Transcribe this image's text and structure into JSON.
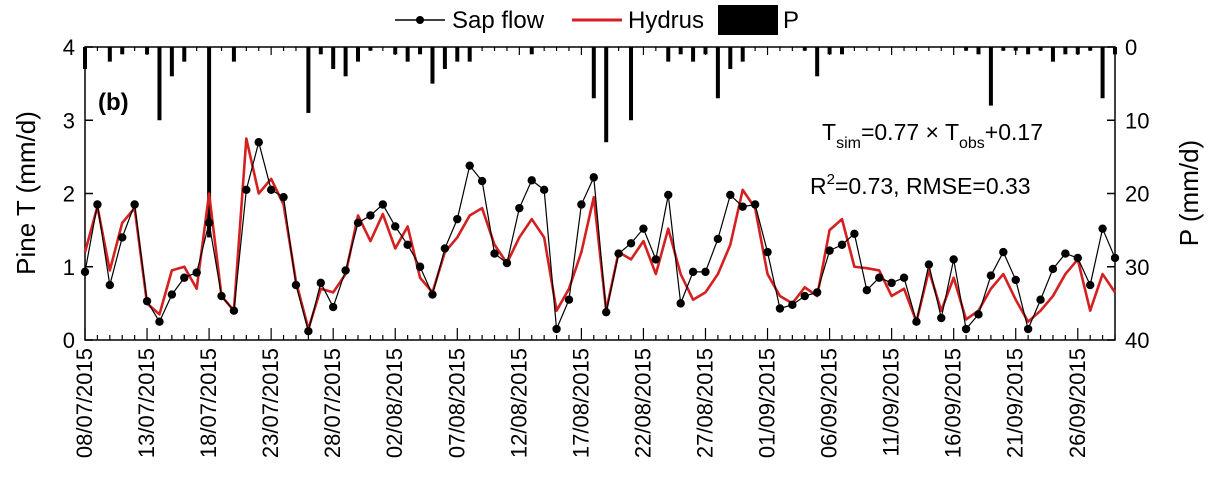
{
  "chart_data": {
    "type": "line",
    "panel_label": "(b)",
    "ylabel_left": "Pine T (mm/d)",
    "ylabel_right": "P (mm/d)",
    "ylim_left": [
      0,
      4
    ],
    "ylim_right_inverted": [
      0,
      40
    ],
    "yticks_left": [
      "0",
      "1",
      "2",
      "3",
      "4"
    ],
    "yticks_right": [
      "0",
      "10",
      "20",
      "30",
      "40"
    ],
    "x_tick_labels": [
      "08/07/2015",
      "13/07/2015",
      "18/07/2015",
      "23/07/2015",
      "28/07/2015",
      "02/08/2015",
      "07/08/2015",
      "12/08/2015",
      "17/08/2015",
      "22/08/2015",
      "27/08/2015",
      "01/09/2015",
      "06/09/2015",
      "11/09/2015",
      "16/09/2015",
      "21/09/2015",
      "26/09/2015"
    ],
    "x_start_date": "08/07/2015",
    "legend": {
      "sap": "Sap flow",
      "hydrus": "Hydrus",
      "precip": "P",
      "placement": "top"
    },
    "annotation": {
      "line1": {
        "t": "T",
        "sim": "sim",
        "mid": "=0.77 × T",
        "obs": "obs",
        "end": "+0.17"
      },
      "line2": {
        "r": "R",
        "sup": "2",
        "rest": "=0.73, RMSE=0.33"
      }
    },
    "colors": {
      "sap": "#000000",
      "hydrus": "#d42020",
      "precip": "#000000"
    },
    "series": [
      {
        "name": "Sap flow",
        "values": [
          0.93,
          1.85,
          0.75,
          1.4,
          1.85,
          0.53,
          0.25,
          0.62,
          0.85,
          0.92,
          1.6,
          0.6,
          0.4,
          2.05,
          2.7,
          2.05,
          1.95,
          0.75,
          0.12,
          0.78,
          0.45,
          0.95,
          1.6,
          1.7,
          1.85,
          1.55,
          1.3,
          1.0,
          0.62,
          1.25,
          1.65,
          2.38,
          2.17,
          1.18,
          1.05,
          1.8,
          2.18,
          2.05,
          0.15,
          0.55,
          1.85,
          2.22,
          0.38,
          1.18,
          1.32,
          1.52,
          1.1,
          1.98,
          0.5,
          0.93,
          0.93,
          1.38,
          1.98,
          1.82,
          1.85,
          1.2,
          0.43,
          0.48,
          0.6,
          0.65,
          1.22,
          1.3,
          1.45,
          0.68,
          0.85,
          0.78,
          0.85,
          0.25,
          1.03,
          0.3,
          1.1,
          0.15,
          0.35,
          0.88,
          1.2,
          0.82,
          0.15,
          0.55,
          0.97,
          1.18,
          1.12,
          0.75,
          1.52,
          1.12
        ]
      },
      {
        "name": "Hydrus",
        "values": [
          1.2,
          1.82,
          0.95,
          1.6,
          1.8,
          0.5,
          0.35,
          0.95,
          1.0,
          0.7,
          2.0,
          0.6,
          0.4,
          2.75,
          2.0,
          2.2,
          1.85,
          0.8,
          0.15,
          0.7,
          0.65,
          0.9,
          1.7,
          1.35,
          1.72,
          1.25,
          1.55,
          0.85,
          0.65,
          1.2,
          1.4,
          1.7,
          1.8,
          1.3,
          1.05,
          1.4,
          1.65,
          1.4,
          0.4,
          0.7,
          1.2,
          1.95,
          0.4,
          1.2,
          1.1,
          1.35,
          0.9,
          1.52,
          0.9,
          0.55,
          0.65,
          0.9,
          1.3,
          2.05,
          1.8,
          0.9,
          0.6,
          0.5,
          0.72,
          0.6,
          1.5,
          1.65,
          1.0,
          0.98,
          0.95,
          0.6,
          0.7,
          0.25,
          0.95,
          0.4,
          0.85,
          0.28,
          0.4,
          0.7,
          0.9,
          0.55,
          0.25,
          0.4,
          0.6,
          0.9,
          1.1,
          0.4,
          0.9,
          0.65
        ]
      },
      {
        "name": "P",
        "values": [
          3,
          0,
          2,
          1,
          0,
          1,
          10,
          4,
          2,
          0,
          26,
          0,
          2,
          0,
          0,
          0,
          0,
          0,
          9,
          1,
          3,
          4,
          2,
          0.5,
          0,
          1,
          2,
          1,
          5,
          3,
          2,
          2,
          0,
          0,
          0,
          0,
          1,
          0,
          0,
          0,
          0,
          7,
          13,
          0,
          10,
          0,
          0,
          2,
          1,
          2,
          1,
          7,
          3,
          2,
          0,
          0,
          0,
          0,
          0.5,
          4,
          1,
          1,
          0,
          0,
          0,
          0,
          0,
          0,
          0,
          0,
          0,
          0.5,
          1,
          8,
          0.5,
          0.5,
          1,
          0.5,
          2,
          1,
          1,
          0.5,
          7,
          1
        ]
      }
    ]
  }
}
